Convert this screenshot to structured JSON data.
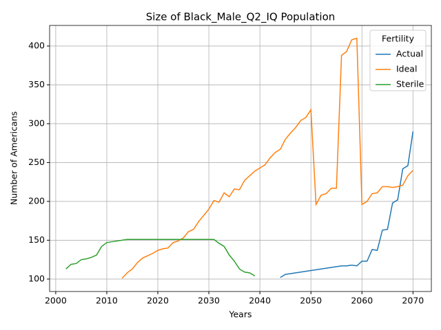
{
  "chart_data": {
    "type": "line",
    "title": "Size of Black_Male_Q2_IQ Population",
    "x_label": "Years",
    "y_label": "Number of Americans",
    "legend_title": "Fertility",
    "legend": "upper right",
    "grid": true,
    "x": [
      2002,
      2003,
      2004,
      2005,
      2006,
      2007,
      2008,
      2009,
      2010,
      2011,
      2012,
      2013,
      2014,
      2015,
      2016,
      2017,
      2018,
      2019,
      2020,
      2021,
      2022,
      2023,
      2024,
      2025,
      2026,
      2027,
      2028,
      2029,
      2030,
      2031,
      2032,
      2033,
      2034,
      2035,
      2036,
      2037,
      2038,
      2039,
      2040,
      2041,
      2042,
      2043,
      2044,
      2045,
      2046,
      2047,
      2048,
      2049,
      2050,
      2051,
      2052,
      2053,
      2054,
      2055,
      2056,
      2057,
      2058,
      2059,
      2060,
      2061,
      2062,
      2063,
      2064,
      2065,
      2066,
      2067,
      2068,
      2069,
      2070
    ],
    "series": [
      {
        "name": "Actual",
        "color": "#1f77b4",
        "values": [
          null,
          null,
          null,
          null,
          null,
          null,
          null,
          null,
          null,
          null,
          null,
          null,
          null,
          null,
          null,
          null,
          null,
          null,
          null,
          null,
          null,
          null,
          null,
          null,
          null,
          null,
          null,
          null,
          null,
          null,
          null,
          null,
          null,
          null,
          null,
          null,
          null,
          null,
          null,
          null,
          null,
          null,
          102,
          106,
          107,
          108,
          109,
          110,
          111,
          112,
          113,
          114,
          115,
          116,
          117,
          117,
          118,
          117,
          123,
          123,
          138,
          137,
          163,
          164,
          198,
          202,
          242,
          246,
          290
        ]
      },
      {
        "name": "Ideal",
        "color": "#ff7f0e",
        "values": [
          null,
          null,
          null,
          null,
          null,
          null,
          null,
          null,
          null,
          null,
          null,
          101,
          108,
          113,
          121,
          127,
          130,
          133,
          137,
          139,
          140,
          147,
          149,
          153,
          161,
          164,
          174,
          182,
          190,
          201,
          199,
          211,
          206,
          216,
          215,
          227,
          233,
          239,
          243,
          247,
          256,
          263,
          267,
          280,
          288,
          295,
          304,
          308,
          318,
          196,
          208,
          210,
          217,
          217,
          388,
          393,
          408,
          410,
          196,
          200,
          210,
          211,
          219,
          219,
          218,
          219,
          221,
          233,
          240
        ]
      },
      {
        "name": "Sterile",
        "color": "#2ca02c",
        "values": [
          113,
          119,
          120,
          125,
          126,
          128,
          131,
          142,
          147,
          148,
          149,
          150,
          151,
          151,
          151,
          151,
          151,
          151,
          151,
          151,
          151,
          151,
          151,
          151,
          151,
          151,
          151,
          151,
          151,
          151,
          146,
          142,
          131,
          123,
          113,
          109,
          108,
          104,
          null,
          null,
          null,
          null,
          null,
          null,
          null,
          null,
          null,
          null,
          null,
          null,
          null,
          null,
          null,
          null,
          null,
          null,
          null,
          null,
          null,
          null,
          null,
          null,
          null,
          null,
          null,
          null,
          null,
          null,
          null
        ]
      }
    ],
    "xlim": [
      1998.8,
      2073.6
    ],
    "ylim": [
      84,
      426.5
    ],
    "xticks": [
      2000,
      2010,
      2020,
      2030,
      2040,
      2050,
      2060,
      2070
    ],
    "yticks": [
      100,
      150,
      200,
      250,
      300,
      350,
      400
    ]
  }
}
